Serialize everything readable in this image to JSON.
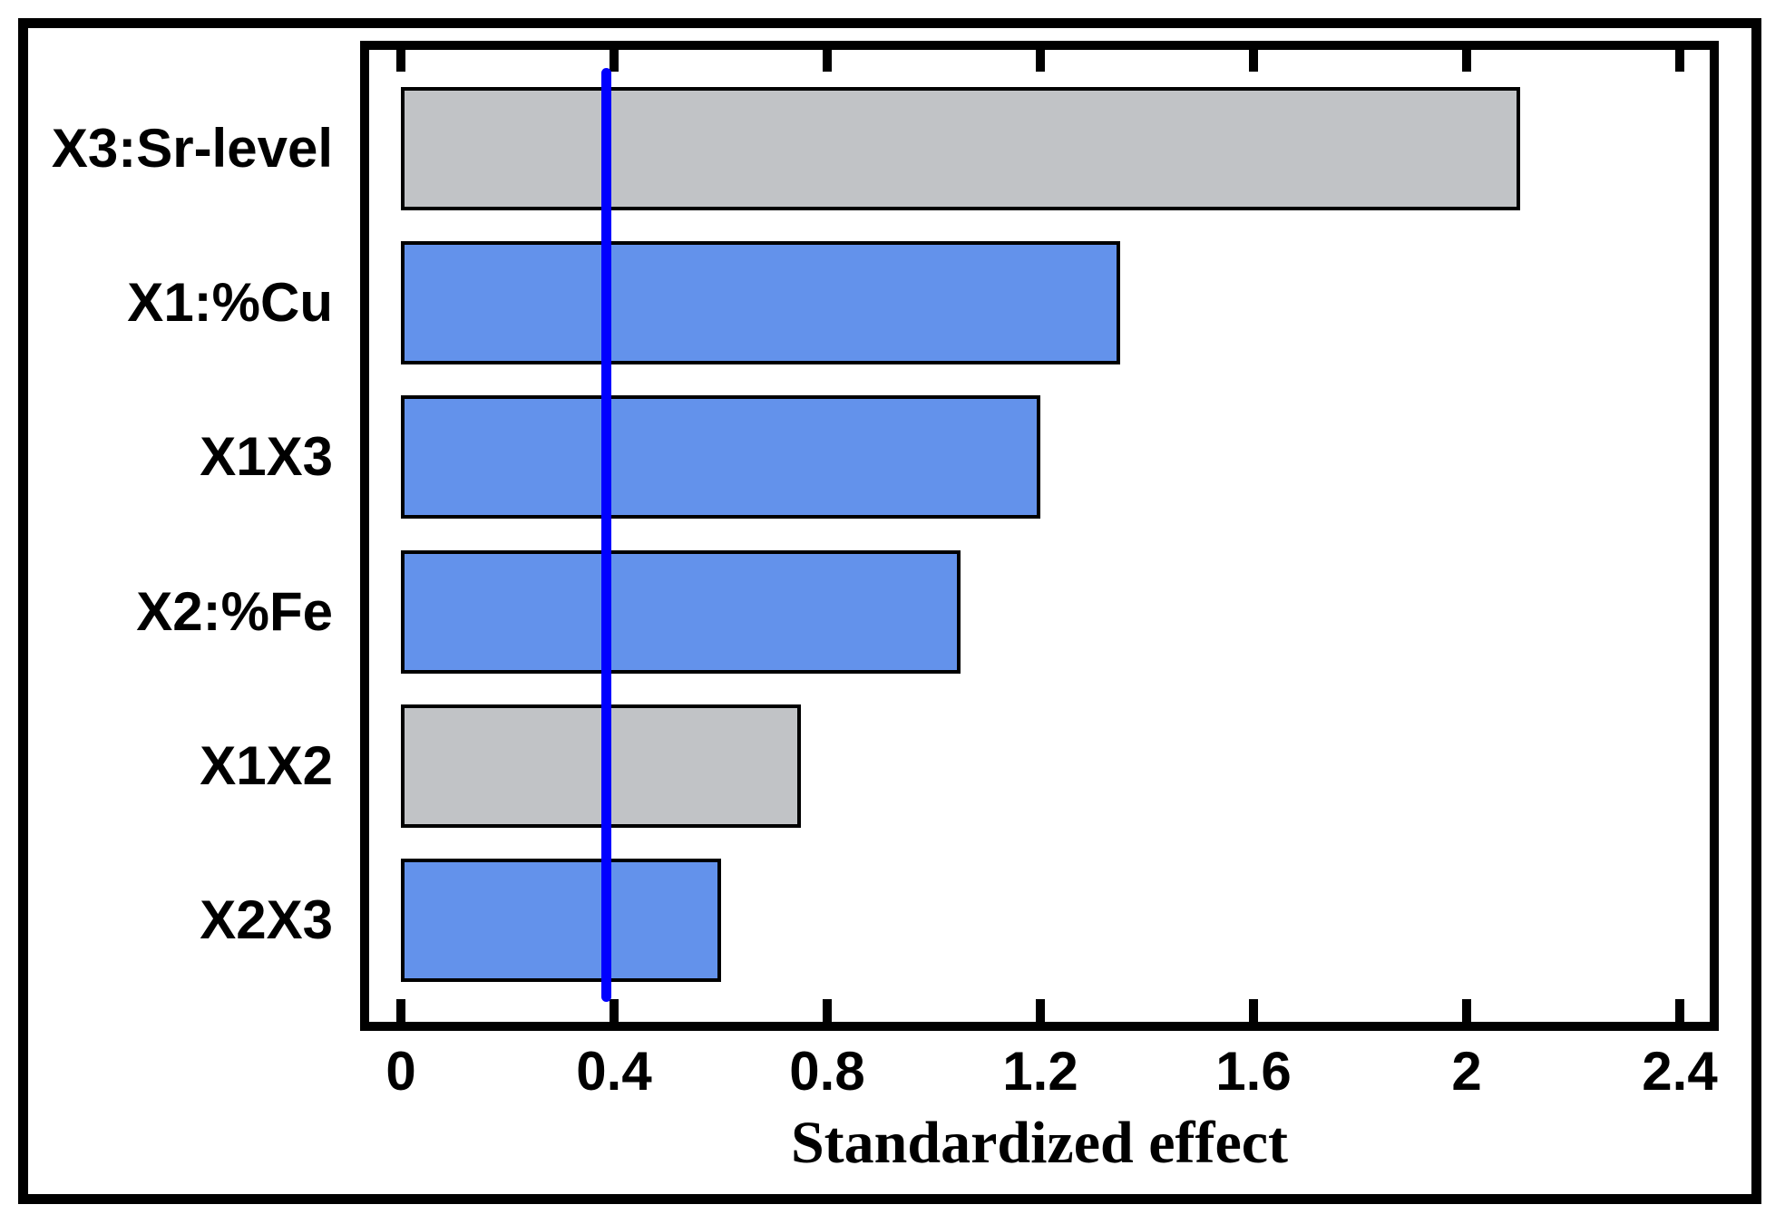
{
  "chart_data": {
    "type": "bar",
    "orientation": "horizontal",
    "title": "",
    "xlabel": "Standardized effect",
    "ylabel": "",
    "categories": [
      "X3:Sr-level",
      "X1:%Cu",
      "X1X3",
      "X2:%Fe",
      "X1X2",
      "X2X3"
    ],
    "series": [
      {
        "name": "standardized-effects",
        "values": [
          2.1,
          1.35,
          1.2,
          1.05,
          0.75,
          0.6
        ],
        "bar_color_keys": [
          "gray",
          "blue",
          "blue",
          "blue",
          "gray",
          "blue"
        ]
      }
    ],
    "xlim": [
      0,
      2.4
    ],
    "xticks": [
      0,
      0.4,
      0.8,
      1.2,
      1.6,
      2,
      2.4
    ],
    "xtick_labels": [
      "0",
      "0.4",
      "0.8",
      "1.2",
      "1.6",
      "2",
      "2.4"
    ],
    "reference_line": {
      "value": 0.385
    },
    "grid": false,
    "legend": false,
    "colors": {
      "blue_bar": "#6392EB",
      "gray_bar": "#C1C3C6",
      "bar_border": "#000000",
      "reference_line": "#0000FF",
      "axis": "#000000",
      "background": "#FFFFFF"
    }
  }
}
